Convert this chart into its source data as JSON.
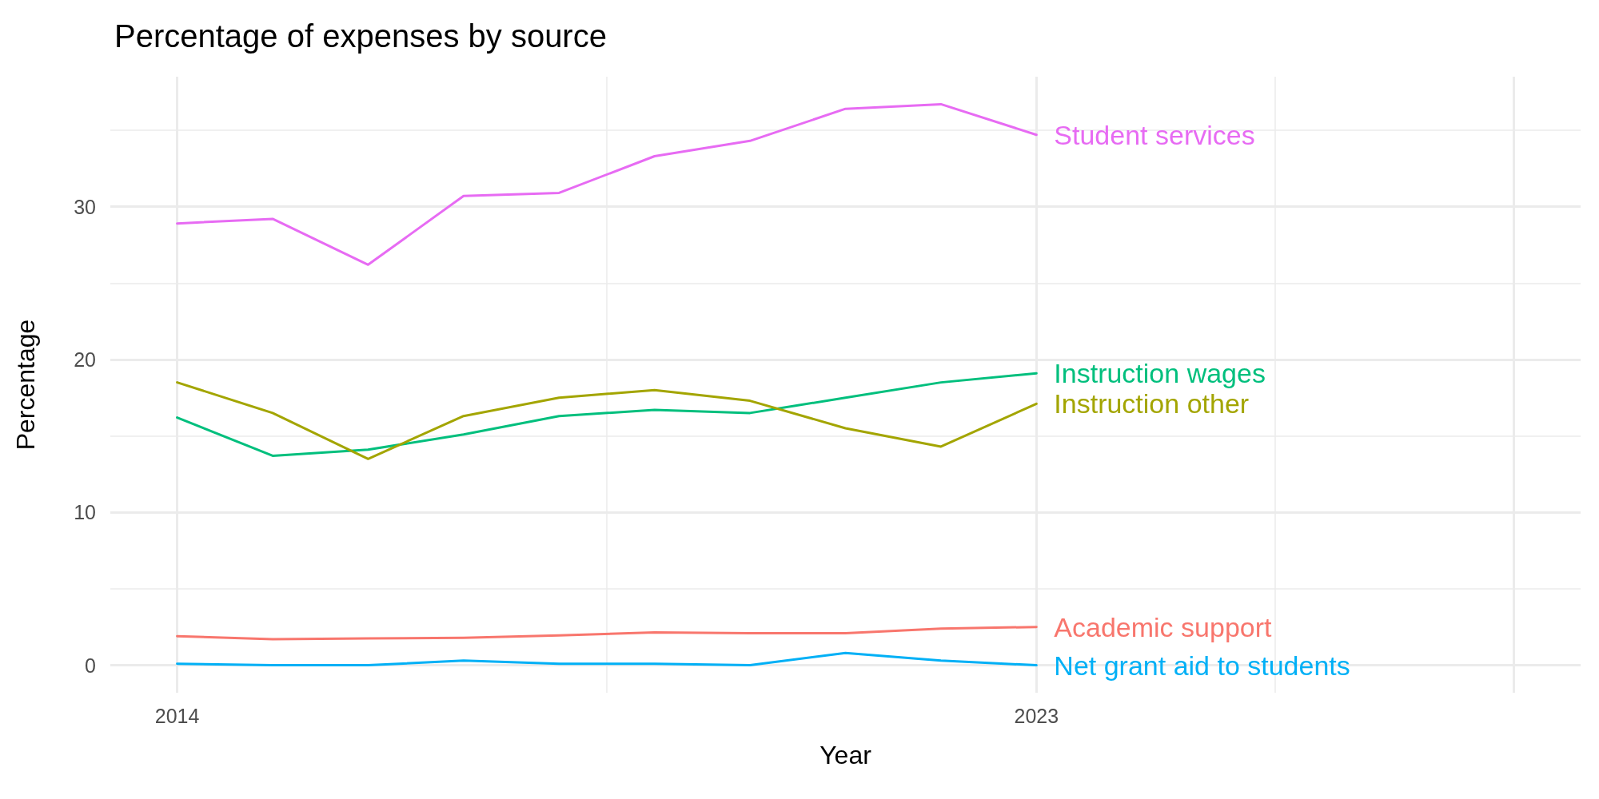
{
  "chart_data": {
    "type": "line",
    "title": "Percentage of expenses by source",
    "xlabel": "Year",
    "ylabel": "Percentage",
    "x": [
      2014,
      2015,
      2016,
      2017,
      2018,
      2019,
      2020,
      2021,
      2022,
      2023
    ],
    "series": [
      {
        "name": "Student services",
        "color": "#e76bf3",
        "values": [
          28.9,
          29.2,
          26.2,
          30.7,
          30.9,
          33.3,
          34.3,
          36.4,
          36.7,
          34.7
        ]
      },
      {
        "name": "Instruction wages",
        "color": "#00bf7d",
        "values": [
          16.2,
          13.7,
          14.1,
          15.1,
          16.3,
          16.7,
          16.5,
          17.5,
          18.5,
          19.1
        ]
      },
      {
        "name": "Instruction other",
        "color": "#a3a500",
        "values": [
          18.5,
          16.5,
          13.5,
          16.3,
          17.5,
          18.0,
          17.3,
          15.5,
          14.3,
          17.1
        ]
      },
      {
        "name": "Academic support",
        "color": "#f8766d",
        "values": [
          1.9,
          1.7,
          1.75,
          1.8,
          1.95,
          2.15,
          2.1,
          2.1,
          2.4,
          2.5
        ]
      },
      {
        "name": "Net grant aid to students",
        "color": "#00b0f6",
        "values": [
          0.1,
          0.0,
          0.0,
          0.3,
          0.1,
          0.1,
          0.0,
          0.8,
          0.3,
          0.0
        ]
      }
    ],
    "xlim": [
      2013.3,
      2028.7
    ],
    "xticks": [
      2014,
      2023,
      {
        "value": 2028,
        "label": null
      }
    ],
    "ylim": [
      -1.8,
      38.5
    ],
    "yticks": [
      0,
      10,
      20,
      30
    ],
    "grid": true,
    "legend": false,
    "marker": "none",
    "line_style": "solid"
  }
}
